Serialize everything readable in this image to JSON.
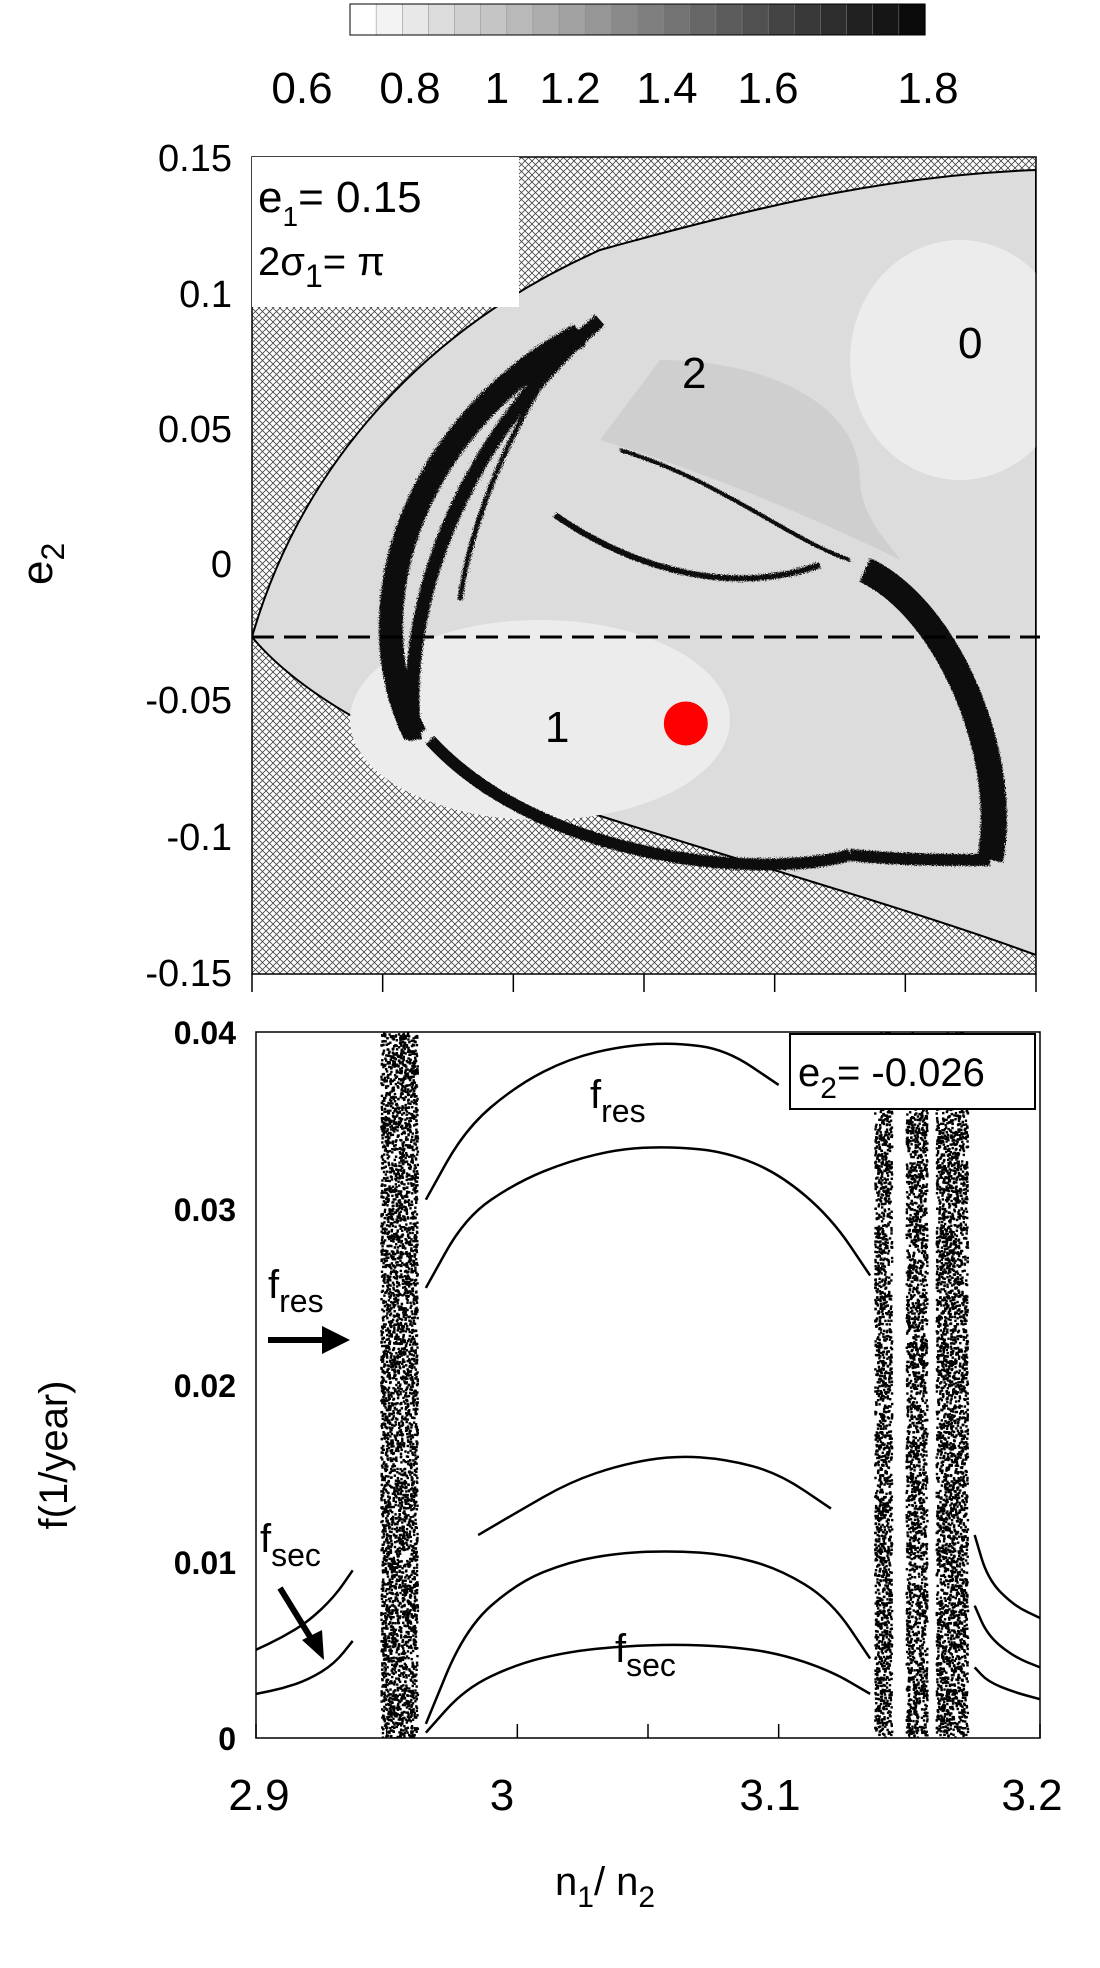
{
  "colorbar": {
    "ticks": [
      "0.6",
      "0.8",
      "1",
      "1.2",
      "1.4",
      "1.6",
      "1.8"
    ],
    "range": [
      0.6,
      1.8
    ]
  },
  "top_panel": {
    "ylabel_main": "e",
    "ylabel_sub": "2",
    "yticks": [
      "0.15",
      "0.1",
      "0.05",
      "0",
      "-0.05",
      "-0.1",
      "-0.15"
    ],
    "annotation": {
      "e1_main": "e",
      "e1_sub": "1",
      "e1_value": "= 0.15",
      "sigma_prefix": "2σ",
      "sigma_sub": "1",
      "sigma_value": "= π"
    },
    "region_labels": [
      "0",
      "2",
      "1"
    ],
    "dashed_line_e2": -0.026,
    "marker": {
      "x": 3.066,
      "y": -0.058,
      "color": "#ff0000"
    }
  },
  "bottom_panel": {
    "ylabel": "f(1/year)",
    "yticks": [
      "0.04",
      "0.03",
      "0.02",
      "0.01",
      "0"
    ],
    "xticks": [
      "2.9",
      "3",
      "3.1",
      "3.2"
    ],
    "xlabel_n1": "n",
    "xlabel_n1_sub": "1",
    "xlabel_sep": "/ n",
    "xlabel_n2_sub": "2",
    "box_main": "e",
    "box_sub": "2",
    "box_value": "= -0.026",
    "fres_main": "f",
    "fres_sub": "res",
    "fsec_main": "f",
    "fsec_sub": "sec"
  },
  "chart_data": [
    {
      "type": "heatmap",
      "title": "",
      "xlabel": "",
      "ylabel": "e2",
      "xlim": [
        2.9,
        3.2
      ],
      "ylim": [
        -0.15,
        0.15
      ],
      "colorbar": [
        0.6,
        1.8
      ],
      "annotations": [
        "e1= 0.15",
        "2σ1= π",
        "0",
        "1",
        "2"
      ],
      "dashed_line": {
        "e2": -0.026
      },
      "marker": {
        "x": 3.066,
        "y": -0.058
      }
    },
    {
      "type": "scatter",
      "title": "",
      "xlabel": "n1/ n2",
      "ylabel": "f(1/year)",
      "xlim": [
        2.9,
        3.2
      ],
      "ylim": [
        0,
        0.04
      ],
      "annotations": [
        "e2= -0.026",
        "fres",
        "fsec"
      ],
      "chaotic_bands": [
        [
          2.9475,
          2.9615
        ],
        [
          3.1365,
          3.143
        ],
        [
          3.1485,
          3.1565
        ],
        [
          3.16,
          3.172
        ]
      ],
      "series": [
        {
          "name": "fsec",
          "x": [
            2.965,
            2.98,
            3.0,
            3.02,
            3.04,
            3.06,
            3.08,
            3.1,
            3.12,
            3.135
          ],
          "y": [
            0.0003,
            0.0028,
            0.0042,
            0.0049,
            0.0052,
            0.0053,
            0.0052,
            0.0048,
            0.0038,
            0.0025
          ]
        },
        {
          "name": "",
          "x": [
            2.965,
            2.98,
            3.0,
            3.02,
            3.04,
            3.06,
            3.08,
            3.1,
            3.12,
            3.135
          ],
          "y": [
            0.0008,
            0.0062,
            0.0088,
            0.01,
            0.0105,
            0.0106,
            0.0104,
            0.0096,
            0.0078,
            0.0045
          ]
        },
        {
          "name": "",
          "x": [
            2.985,
            3.0,
            3.02,
            3.04,
            3.06,
            3.08,
            3.1,
            3.12
          ],
          "y": [
            0.0115,
            0.0128,
            0.0145,
            0.0155,
            0.016,
            0.0158,
            0.015,
            0.013
          ]
        },
        {
          "name": "fres",
          "x": [
            2.965,
            2.98,
            3.0,
            3.02,
            3.04,
            3.06,
            3.08,
            3.1,
            3.12,
            3.135
          ],
          "y": [
            0.0255,
            0.0295,
            0.0315,
            0.0327,
            0.0334,
            0.0335,
            0.0332,
            0.032,
            0.0295,
            0.0262
          ]
        },
        {
          "name": "",
          "x": [
            2.965,
            2.98,
            3.0,
            3.02,
            3.04,
            3.06,
            3.08,
            3.1
          ],
          "y": [
            0.0305,
            0.0345,
            0.037,
            0.0385,
            0.0392,
            0.0394,
            0.039,
            0.037
          ]
        },
        {
          "name": "",
          "x": [
            2.9,
            2.91,
            2.92,
            2.93,
            2.937
          ],
          "y": [
            0.0025,
            0.0028,
            0.0033,
            0.0042,
            0.0055
          ]
        },
        {
          "name": "",
          "x": [
            2.9,
            2.91,
            2.92,
            2.93,
            2.937
          ],
          "y": [
            0.005,
            0.0057,
            0.0066,
            0.008,
            0.0095
          ]
        },
        {
          "name": "",
          "x": [
            3.175,
            3.18,
            3.19,
            3.2
          ],
          "y": [
            0.004,
            0.0032,
            0.0026,
            0.0022
          ]
        },
        {
          "name": "",
          "x": [
            3.175,
            3.18,
            3.19,
            3.2
          ],
          "y": [
            0.0075,
            0.0058,
            0.0046,
            0.004
          ]
        },
        {
          "name": "",
          "x": [
            3.175,
            3.18,
            3.19,
            3.2
          ],
          "y": [
            0.0115,
            0.009,
            0.0075,
            0.0068
          ]
        }
      ]
    }
  ]
}
